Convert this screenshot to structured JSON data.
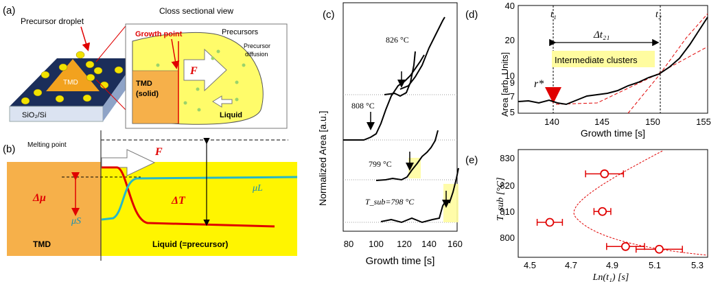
{
  "panel_a": {
    "label": "(a)",
    "precursor_droplet": "Precursor droplet",
    "cross_section_title": "Closs sectional view",
    "growth_point": "Growth point",
    "precursors": "Precursors",
    "precursor_diffusion_1": "Precursor",
    "precursor_diffusion_2": "diffusion",
    "tmd": "TMD",
    "tmd_solid_1": "TMD",
    "tmd_solid_2": "(solid)",
    "force": "F",
    "liquid": "Liquid",
    "substrate": "SiO₂/Si"
  },
  "panel_b": {
    "label": "(b)",
    "melting_point": "Melting point",
    "force": "F",
    "delta_mu": "Δμ",
    "delta_t": "ΔT",
    "mu_l": "μL",
    "mu_s": "μS",
    "tmd": "TMD",
    "liquid": "Liquid (=precursor)"
  },
  "panel_c": {
    "label": "(c)",
    "ylabel": "Normalized Area [a.u.]",
    "xlabel": "Growth time [s]",
    "xticks": [
      "80",
      "100",
      "120",
      "140",
      "160"
    ],
    "curves": [
      {
        "label": "826 °C",
        "arrow": true
      },
      {
        "label": "808 °C",
        "arrow": true
      },
      {
        "label": "799 °C",
        "arrow": true
      },
      {
        "label": "T_sub=798 °C",
        "arrow": true
      }
    ]
  },
  "panel_d": {
    "label": "(d)",
    "ylabel": "Area [arb. Units]",
    "xlabel": "Growth time [s]",
    "yticks": [
      "40",
      "20",
      "10",
      "9",
      "7",
      "5"
    ],
    "xticks": [
      "140",
      "145",
      "150",
      "155"
    ],
    "t1": "t₁",
    "t2": "t₂",
    "delta_t21": "Δt₂₁",
    "intermediate": "Intermediate clusters",
    "r_star": "r*"
  },
  "panel_e": {
    "label": "(e)",
    "ylabel": "T_sub [°C]",
    "xlabel": "Ln(t₁) [s]",
    "yticks": [
      "830",
      "820",
      "810",
      "800"
    ],
    "xticks": [
      "4.5",
      "4.7",
      "4.9",
      "5.1",
      "5.3"
    ]
  },
  "chart_data": [
    {
      "type": "scatter",
      "panel": "(e)",
      "xlabel": "Ln(t₁) [s]",
      "ylabel": "T_sub [°C]",
      "xlim": [
        4.4,
        5.3
      ],
      "ylim": [
        795,
        835
      ],
      "points": [
        {
          "x": 4.81,
          "y": 826,
          "xerr": 0.09
        },
        {
          "x": 4.8,
          "y": 812,
          "xerr": 0.04
        },
        {
          "x": 4.55,
          "y": 808,
          "xerr": 0.06
        },
        {
          "x": 4.91,
          "y": 799,
          "xerr": 0.09
        },
        {
          "x": 5.07,
          "y": 798,
          "xerr": 0.11
        }
      ],
      "fit": "dashed curve"
    }
  ]
}
